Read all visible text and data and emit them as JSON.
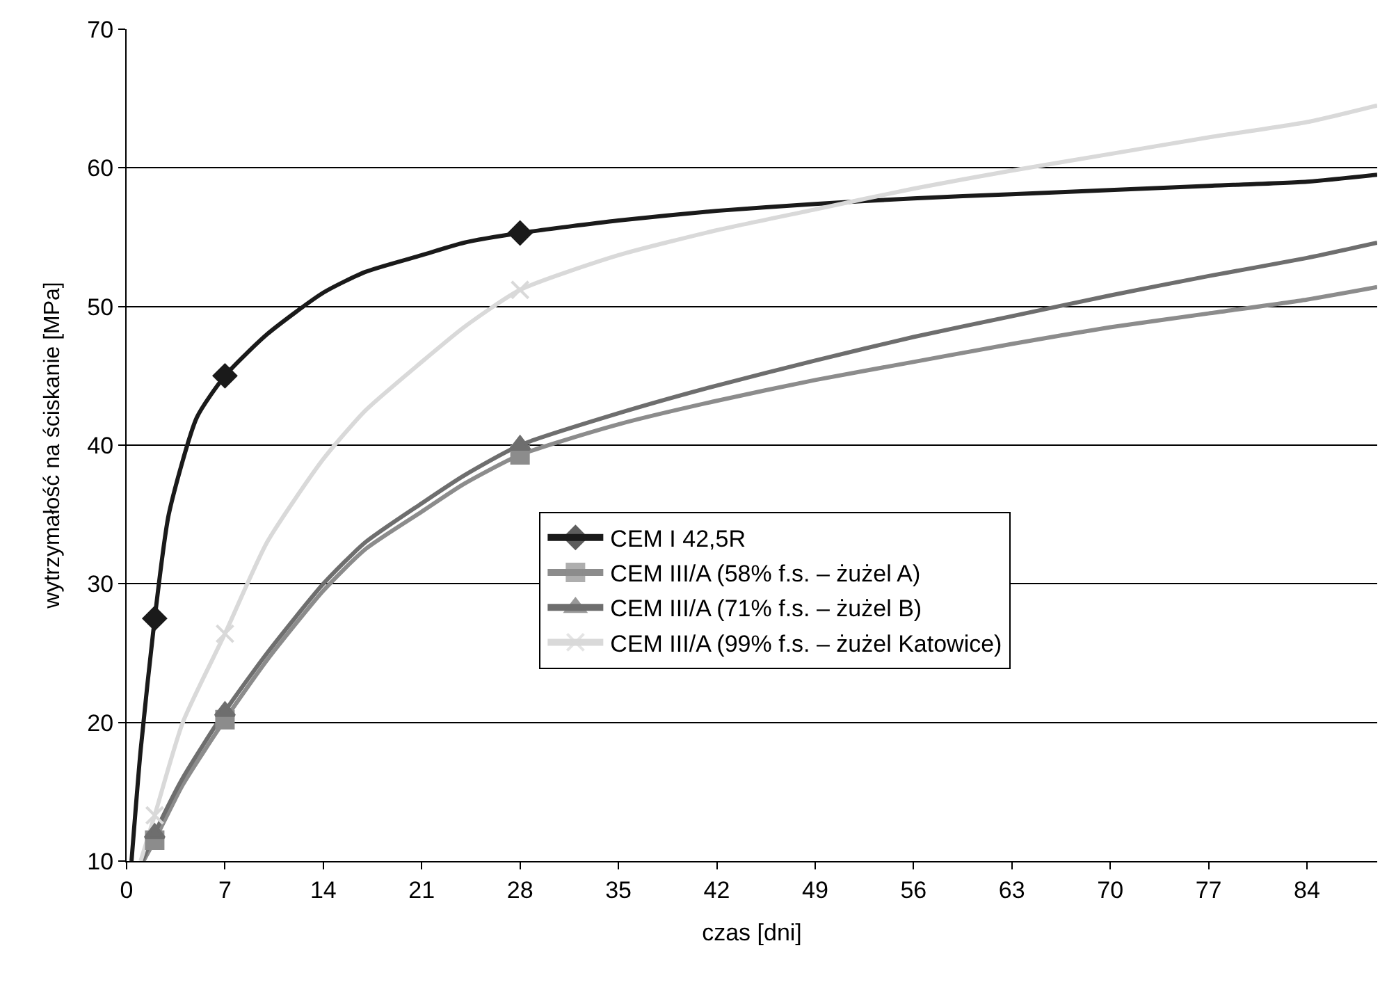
{
  "chart_data": {
    "type": "line",
    "xlabel": "czas [dni]",
    "ylabel": "wytrzymałość na ściskanie [MPa]",
    "xlim": [
      0,
      89
    ],
    "xticks": [
      0,
      7,
      14,
      21,
      28,
      35,
      42,
      49,
      56,
      63,
      70,
      77,
      84
    ],
    "ylim": [
      10,
      70
    ],
    "yticks": [
      10,
      20,
      30,
      40,
      50,
      60,
      70
    ],
    "grid": "y",
    "legend": "bottom right",
    "line_style": "solid",
    "series": [
      {
        "name": "CEM I 42,5R",
        "color": "#1a1a1a",
        "x": [
          0.35,
          1,
          2,
          3,
          5,
          7,
          10,
          14,
          17,
          21,
          24,
          28,
          35,
          42,
          49,
          56,
          63,
          70,
          77,
          84,
          89
        ],
        "values": [
          10,
          18,
          27.5,
          35,
          42,
          45,
          48,
          51,
          52.5,
          53.7,
          54.6,
          55.3,
          56.2,
          56.9,
          57.4,
          57.8,
          58.1,
          58.4,
          58.7,
          59,
          59.5
        ]
      },
      {
        "name": "CEM III/A (58% f.s. – żużel A)",
        "color": "#8c8c8c",
        "x": [
          1.2,
          2,
          4,
          7,
          10,
          14,
          17,
          21,
          24,
          28,
          35,
          42,
          49,
          56,
          63,
          70,
          77,
          84,
          89
        ],
        "values": [
          10,
          11.5,
          15.5,
          20.2,
          24.5,
          29.5,
          32.5,
          35.2,
          37.2,
          39.3,
          41.5,
          43.2,
          44.7,
          46,
          47.3,
          48.5,
          49.5,
          50.5,
          51.4
        ]
      },
      {
        "name": "CEM III/A (71% f.s. – żużel B)",
        "color": "#6e6e6e",
        "x": [
          1.1,
          2,
          4,
          7,
          10,
          14,
          17,
          21,
          24,
          28,
          35,
          42,
          49,
          56,
          63,
          70,
          77,
          84,
          89
        ],
        "values": [
          10,
          12,
          16,
          20.8,
          25,
          30,
          33,
          35.8,
          37.8,
          40,
          42.3,
          44.3,
          46.1,
          47.8,
          49.3,
          50.8,
          52.2,
          53.5,
          54.6
        ]
      },
      {
        "name": "CEM III/A (99% f.s. – żużel Katowice)",
        "color": "#d9d9d9",
        "x": [
          1,
          2,
          4,
          7,
          10,
          14,
          17,
          21,
          24,
          28,
          35,
          42,
          49,
          56,
          63,
          70,
          77,
          84,
          89
        ],
        "values": [
          10,
          13.3,
          20,
          26.4,
          33,
          39,
          42.5,
          46,
          48.5,
          51.2,
          53.7,
          55.5,
          57,
          58.5,
          59.8,
          61,
          62.2,
          63.3,
          64.5
        ]
      },
      {
        "type": "scatter",
        "marker": "diamond",
        "color": "#1a1a1a",
        "x": [
          2,
          7,
          28
        ],
        "values": [
          27.5,
          45,
          55.3
        ]
      },
      {
        "type": "scatter",
        "marker": "square",
        "color": "#8c8c8c",
        "x": [
          2,
          7,
          28
        ],
        "values": [
          11.5,
          20.2,
          39.3
        ]
      },
      {
        "type": "scatter",
        "marker": "triangle",
        "color": "#6e6e6e",
        "x": [
          2,
          7,
          28
        ],
        "values": [
          12,
          20.8,
          40
        ]
      },
      {
        "type": "scatter",
        "marker": "cross",
        "color": "#d9d9d9",
        "x": [
          2,
          7,
          28
        ],
        "values": [
          13.3,
          26.4,
          51.2
        ]
      }
    ]
  }
}
